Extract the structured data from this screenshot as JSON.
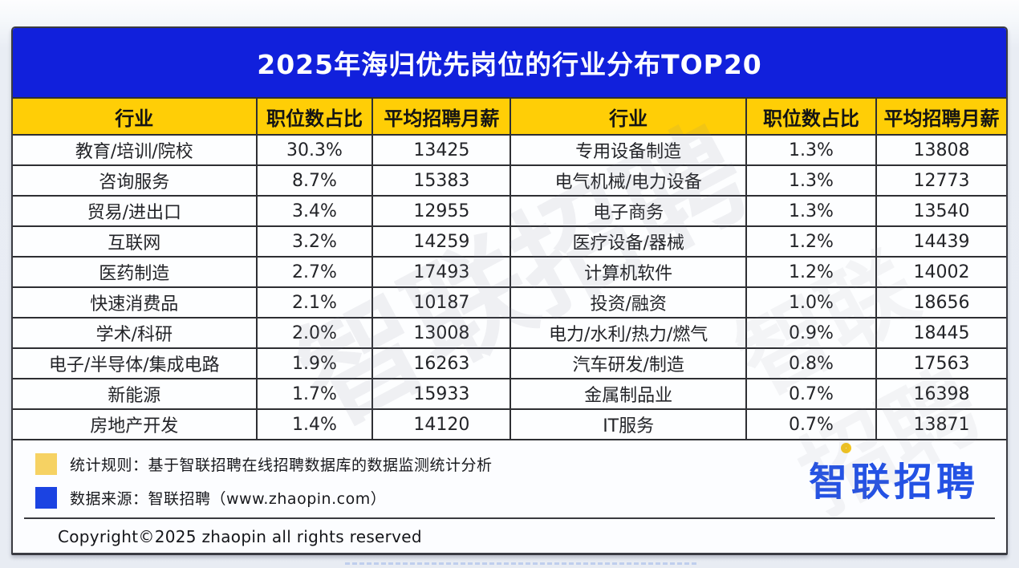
{
  "title": "2025年海归优先岗位的行业分布TOP20",
  "table": {
    "headers": [
      "行业",
      "职位数占比",
      "平均招聘月薪",
      "行业",
      "职位数占比",
      "平均招聘月薪"
    ],
    "left_rows": [
      {
        "industry": "教育/培训/院校",
        "share": "30.3%",
        "salary": "13425"
      },
      {
        "industry": "咨询服务",
        "share": "8.7%",
        "salary": "15383"
      },
      {
        "industry": "贸易/进出口",
        "share": "3.4%",
        "salary": "12955"
      },
      {
        "industry": "互联网",
        "share": "3.2%",
        "salary": "14259"
      },
      {
        "industry": "医药制造",
        "share": "2.7%",
        "salary": "17493"
      },
      {
        "industry": "快速消费品",
        "share": "2.1%",
        "salary": "10187"
      },
      {
        "industry": "学术/科研",
        "share": "2.0%",
        "salary": "13008"
      },
      {
        "industry": "电子/半导体/集成电路",
        "share": "1.9%",
        "salary": "16263"
      },
      {
        "industry": "新能源",
        "share": "1.7%",
        "salary": "15933"
      },
      {
        "industry": "房地产开发",
        "share": "1.4%",
        "salary": "14120"
      }
    ],
    "right_rows": [
      {
        "industry": "专用设备制造",
        "share": "1.3%",
        "salary": "13808"
      },
      {
        "industry": "电气机械/电力设备",
        "share": "1.3%",
        "salary": "12773"
      },
      {
        "industry": "电子商务",
        "share": "1.3%",
        "salary": "13540"
      },
      {
        "industry": "医疗设备/器械",
        "share": "1.2%",
        "salary": "14439"
      },
      {
        "industry": "计算机软件",
        "share": "1.2%",
        "salary": "14002"
      },
      {
        "industry": "投资/融资",
        "share": "1.0%",
        "salary": "18656"
      },
      {
        "industry": "电力/水利/热力/燃气",
        "share": "0.9%",
        "salary": "18445"
      },
      {
        "industry": "汽车研发/制造",
        "share": "0.8%",
        "salary": "17563"
      },
      {
        "industry": "金属制品业",
        "share": "0.7%",
        "salary": "16398"
      },
      {
        "industry": "IT服务",
        "share": "0.7%",
        "salary": "13871"
      }
    ]
  },
  "footer": {
    "legend": [
      {
        "color": "#f6d263",
        "text": "统计规则：基于智联招聘在线招聘数据库的数据监测统计分析"
      },
      {
        "color": "#1b43e2",
        "text": "数据来源：智联招聘（www.zhaopin.com）"
      }
    ],
    "logo_text": "智联招聘",
    "copyright": "Copyright©2025 zhaopin all rights reserved"
  },
  "watermark_text": "智联招聘",
  "colors": {
    "title_bar_blue": "#1120dc",
    "header_yellow": "#ffce06",
    "grid_border": "#2e2f33",
    "legend_yellow": "#f6d263",
    "legend_blue": "#1b43e2",
    "logo_blue": "#2452e4",
    "logo_ring_yellow": "#f3c51d"
  },
  "chart_data": {
    "type": "table",
    "title": "2025年海归优先岗位的行业分布TOP20",
    "columns": [
      "行业",
      "职位数占比",
      "平均招聘月薪"
    ],
    "rows": [
      [
        "教育/培训/院校",
        "30.3%",
        13425
      ],
      [
        "咨询服务",
        "8.7%",
        15383
      ],
      [
        "贸易/进出口",
        "3.4%",
        12955
      ],
      [
        "互联网",
        "3.2%",
        14259
      ],
      [
        "医药制造",
        "2.7%",
        17493
      ],
      [
        "快速消费品",
        "2.1%",
        10187
      ],
      [
        "学术/科研",
        "2.0%",
        13008
      ],
      [
        "电子/半导体/集成电路",
        "1.9%",
        16263
      ],
      [
        "新能源",
        "1.7%",
        15933
      ],
      [
        "房地产开发",
        "1.4%",
        14120
      ],
      [
        "专用设备制造",
        "1.3%",
        13808
      ],
      [
        "电气机械/电力设备",
        "1.3%",
        12773
      ],
      [
        "电子商务",
        "1.3%",
        13540
      ],
      [
        "医疗设备/器械",
        "1.2%",
        14439
      ],
      [
        "计算机软件",
        "1.2%",
        14002
      ],
      [
        "投资/融资",
        "1.0%",
        18656
      ],
      [
        "电力/水利/热力/燃气",
        "0.9%",
        18445
      ],
      [
        "汽车研发/制造",
        "0.8%",
        17563
      ],
      [
        "金属制品业",
        "0.7%",
        16398
      ],
      [
        "IT服务",
        "0.7%",
        13871
      ]
    ]
  }
}
